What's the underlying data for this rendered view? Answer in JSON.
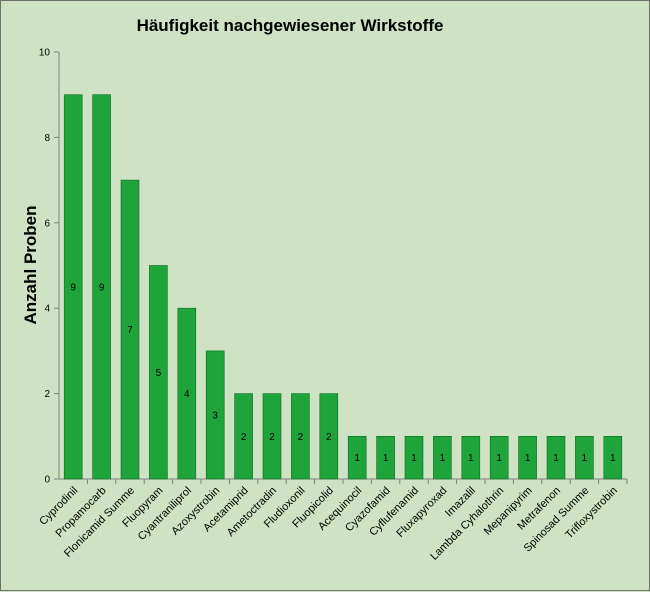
{
  "chart_data": {
    "type": "bar",
    "title": "Häufigkeit nachgewiesener Wirkstoffe",
    "xlabel": "",
    "ylabel": "Anzahl Proben",
    "ylim": [
      0,
      10
    ],
    "yticks": [
      0,
      2,
      4,
      6,
      8,
      10
    ],
    "grid": false,
    "legend": "none",
    "colors": {
      "bar": "#1ea43a",
      "bar_edge": "#0e6e22",
      "plot_bg": "#cfe3c4",
      "axis": "#808080"
    },
    "categories": [
      "Cyprodinil",
      "Propamocarb",
      "Flonicamid Summe",
      "Fluopyram",
      "Cyantraniliprol",
      "Azoxystrobin",
      "Acetamiprid",
      "Ametoctradin",
      "Fludioxonil",
      "Fluopicolid",
      "Acequinocil",
      "Cyazofamid",
      "Cyflufenamid",
      "Fluxapyroxad",
      "Imazalil",
      "Lambda Cyhalothrin",
      "Mepanipyrim",
      "Metrafenon",
      "Spinosad Summe",
      "Trifloxystrobin"
    ],
    "values": [
      9,
      9,
      7,
      5,
      4,
      3,
      2,
      2,
      2,
      2,
      1,
      1,
      1,
      1,
      1,
      1,
      1,
      1,
      1,
      1
    ]
  }
}
